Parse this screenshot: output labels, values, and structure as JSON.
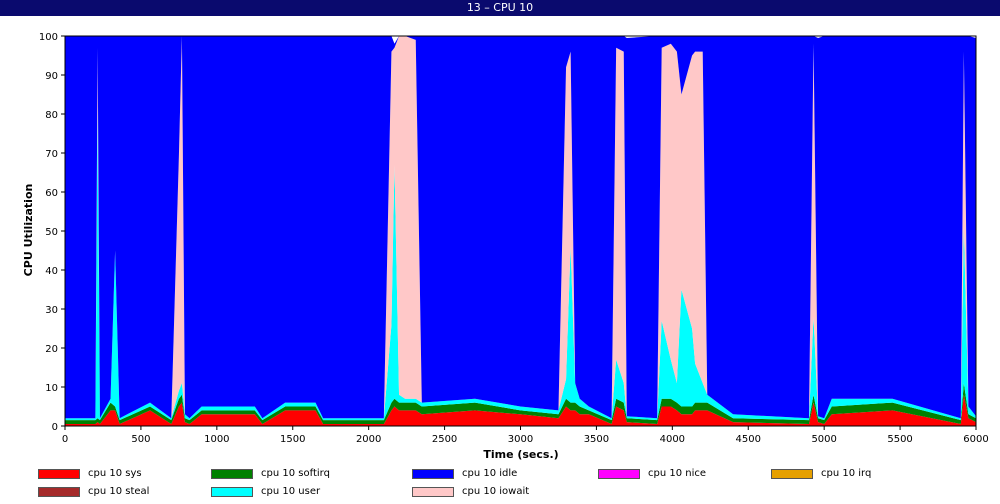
{
  "window": {
    "title": "13 – CPU 10"
  },
  "chart_data": {
    "type": "area",
    "stacked": true,
    "title": "13 – CPU 10",
    "xlabel": "Time (secs.)",
    "ylabel": "CPU Utilization",
    "xlim": [
      0,
      6000
    ],
    "ylim": [
      0,
      100
    ],
    "xticks": [
      "0",
      "500",
      "1000",
      "1500",
      "2000",
      "2500",
      "3000",
      "3500",
      "4000",
      "4500",
      "5000",
      "5500",
      "6000"
    ],
    "yticks": [
      "0",
      "10",
      "20",
      "30",
      "40",
      "50",
      "60",
      "70",
      "80",
      "90",
      "100"
    ],
    "grid": false,
    "legend_position": "bottom",
    "x": [
      0,
      200,
      215,
      230,
      300,
      330,
      360,
      560,
      700,
      750,
      770,
      790,
      820,
      900,
      1000,
      1250,
      1300,
      1450,
      1650,
      1700,
      2100,
      2150,
      2170,
      2200,
      2240,
      2310,
      2350,
      2700,
      3000,
      3250,
      3300,
      3330,
      3360,
      3390,
      3450,
      3600,
      3630,
      3680,
      3700,
      3900,
      3930,
      3990,
      4030,
      4060,
      4130,
      4150,
      4200,
      4230,
      4400,
      4900,
      4930,
      4960,
      5000,
      5050,
      5450,
      5900,
      5920,
      5950,
      6000
    ],
    "series": [
      {
        "name": "cpu 10 sys",
        "color": "#ff0000",
        "values": [
          0.5,
          0.5,
          1,
          0.5,
          4,
          4,
          0.5,
          4,
          0.5,
          5,
          6,
          1,
          0.5,
          3,
          3,
          3,
          0.5,
          4,
          4,
          0.5,
          0.5,
          4,
          5,
          4,
          4,
          4,
          3,
          4,
          3,
          2,
          5,
          4,
          4,
          3,
          3,
          0.5,
          5,
          4,
          1,
          0.5,
          5,
          5,
          4,
          3,
          3,
          4,
          4,
          4,
          1,
          0.5,
          6,
          1,
          0.5,
          3,
          4,
          0.5,
          8,
          2,
          1
        ]
      },
      {
        "name": "cpu 10 softirq",
        "color": "#008000",
        "values": [
          1,
          1,
          1,
          1,
          2,
          1,
          1,
          1,
          1,
          2,
          2,
          1,
          1,
          1,
          1,
          1,
          1,
          1,
          1,
          1,
          1,
          2,
          2,
          2,
          2,
          2,
          2,
          2,
          1,
          1,
          2,
          2,
          2,
          2,
          1,
          1,
          2,
          2,
          1,
          1,
          2,
          2,
          2,
          2,
          2,
          2,
          2,
          2,
          1,
          1,
          2,
          1,
          1,
          2,
          2,
          1,
          3,
          1,
          1
        ]
      },
      {
        "name": "cpu 10 nice",
        "color": "#ff00ff",
        "values": [
          0,
          0,
          0,
          0,
          0,
          0,
          0,
          0,
          0,
          0,
          0,
          0,
          0,
          0,
          0,
          0,
          0,
          0,
          0,
          0,
          0,
          0,
          0,
          0,
          0,
          0,
          0,
          0,
          0,
          0,
          0,
          0,
          0,
          0,
          0,
          0,
          0,
          0,
          0,
          0,
          0,
          0,
          0,
          0,
          0,
          0,
          0,
          0,
          0,
          0,
          0,
          0,
          0,
          0,
          0,
          0,
          0,
          0,
          0
        ]
      },
      {
        "name": "cpu 10 irq",
        "color": "#e6a000",
        "values": [
          0,
          0,
          0,
          0,
          0,
          0,
          0,
          0,
          0,
          0,
          0,
          0,
          0,
          0,
          0,
          0,
          0,
          0,
          0,
          0,
          0,
          0,
          0,
          0,
          0,
          0,
          0,
          0,
          0,
          0,
          0,
          0,
          0,
          0,
          0,
          0,
          0,
          0,
          0,
          0,
          0,
          0,
          0,
          0,
          0,
          0,
          0,
          0,
          0,
          0,
          0,
          0,
          0,
          0,
          0,
          0,
          0,
          0,
          0
        ]
      },
      {
        "name": "cpu 10 steal",
        "color": "#a52a2a",
        "values": [
          0,
          0,
          0,
          0,
          0,
          0,
          0,
          0,
          0,
          0,
          0,
          0,
          0,
          0,
          0,
          0,
          0,
          0,
          0,
          0,
          0,
          0,
          0,
          0,
          0,
          0,
          0,
          0,
          0,
          0,
          0,
          0,
          0,
          0,
          0,
          0,
          0,
          0,
          0,
          0,
          0,
          0,
          0,
          0,
          0,
          0,
          0,
          0,
          0,
          0,
          0,
          0,
          0,
          0,
          0,
          0,
          0,
          0,
          0
        ]
      },
      {
        "name": "cpu 10 user",
        "color": "#00ffff",
        "values": [
          0.5,
          0.5,
          80,
          0.5,
          1,
          40,
          0.5,
          1,
          0.5,
          2,
          3,
          1,
          0.5,
          1,
          1,
          1,
          0.5,
          1,
          1,
          0.5,
          0.5,
          20,
          60,
          2,
          1,
          1,
          1,
          1,
          1,
          1,
          5,
          40,
          5,
          2,
          1,
          0.5,
          10,
          5,
          0.5,
          0.5,
          20,
          10,
          5,
          30,
          20,
          10,
          5,
          2,
          1,
          0.5,
          20,
          0.5,
          0.5,
          2,
          1,
          0.5,
          40,
          2,
          0.5
        ]
      },
      {
        "name": "cpu 10 iowait",
        "color": "#ffc8c8",
        "values": [
          0,
          0,
          15,
          0,
          0,
          0,
          0,
          0,
          0,
          60,
          89,
          0,
          0,
          0,
          0,
          0,
          0,
          0,
          0,
          0,
          0,
          70,
          30,
          92,
          93,
          92,
          0,
          0,
          0,
          0,
          80,
          50,
          0,
          0,
          0,
          0,
          80,
          85,
          0,
          0,
          70,
          81,
          85,
          50,
          70,
          80,
          85,
          0,
          0,
          0,
          70,
          0,
          0,
          0,
          0,
          0,
          45,
          0,
          0
        ]
      },
      {
        "name": "cpu 10 idle",
        "color": "#0000ff",
        "values": [
          98,
          98,
          3,
          98,
          93,
          55,
          98,
          94,
          98,
          31,
          0,
          97,
          98,
          95,
          95,
          95,
          98,
          94,
          94,
          98,
          98,
          4,
          1,
          0,
          0,
          1,
          94,
          93,
          95,
          96,
          8,
          4,
          89,
          93,
          95,
          98,
          3,
          4,
          97,
          98,
          3,
          2,
          4,
          15,
          5,
          4,
          4,
          92,
          97,
          98,
          2,
          97,
          98,
          93,
          93,
          98,
          4,
          95,
          97
        ]
      }
    ]
  },
  "legend": [
    {
      "label": "cpu 10 sys",
      "color": "#ff0000"
    },
    {
      "label": "cpu 10 softirq",
      "color": "#008000"
    },
    {
      "label": "cpu 10 idle",
      "color": "#0000ff"
    },
    {
      "label": "cpu 10 nice",
      "color": "#ff00ff"
    },
    {
      "label": "cpu 10 irq",
      "color": "#e6a000"
    },
    {
      "label": "cpu 10 steal",
      "color": "#a52a2a"
    },
    {
      "label": "cpu 10 user",
      "color": "#00ffff"
    },
    {
      "label": "cpu 10 iowait",
      "color": "#ffc8c8"
    }
  ]
}
